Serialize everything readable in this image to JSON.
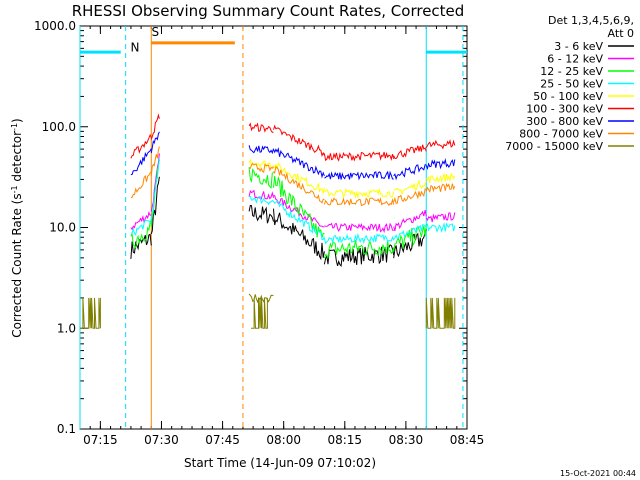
{
  "chart_data": {
    "type": "line",
    "title": "RHESSI Observing Summary Count Rates, Corrected",
    "xlabel": "Start Time (14-Jun-09 07:10:02)",
    "ylabel_parts": [
      "Corrected Count Rate (s",
      "-1",
      " detector",
      "-1",
      ")"
    ],
    "y_scale": "log",
    "ylim": [
      0.1,
      1000
    ],
    "y_ticks": [
      {
        "value": 0.1,
        "label": "0.1"
      },
      {
        "value": 1,
        "label": "1.0"
      },
      {
        "value": 10,
        "label": "10.0"
      },
      {
        "value": 100,
        "label": "100.0"
      },
      {
        "value": 1000,
        "label": "1000.0"
      }
    ],
    "xlim_min": [
      0,
      95
    ],
    "x_ticks": [
      {
        "value": 5,
        "label": "07:15"
      },
      {
        "value": 20,
        "label": "07:30"
      },
      {
        "value": 35,
        "label": "07:45"
      },
      {
        "value": 50,
        "label": "08:00"
      },
      {
        "value": 65,
        "label": "08:15"
      },
      {
        "value": 80,
        "label": "08:30"
      },
      {
        "value": 95,
        "label": "08:45"
      }
    ],
    "legend_header": [
      "Det 1,3,4,5,6,9,",
      "Att 0"
    ],
    "series": [
      {
        "name": "3 - 6 keV",
        "color": "#000000"
      },
      {
        "name": "6 - 12 keV",
        "color": "#ff00ff"
      },
      {
        "name": "12 - 25 keV",
        "color": "#00ff00"
      },
      {
        "name": "25 - 50 keV",
        "color": "#00ffff"
      },
      {
        "name": "50 - 100 keV",
        "color": "#ffff00"
      },
      {
        "name": "100 - 300 keV",
        "color": "#ff0000"
      },
      {
        "name": "300 - 800 keV",
        "color": "#0000ff"
      },
      {
        "name": "800 - 7000 keV",
        "color": "#ff8800"
      },
      {
        "name": "7000 - 15000 keV",
        "color": "#808000"
      }
    ],
    "segments": [
      {
        "t0": 12.5,
        "t1": 17.5,
        "levels": [
          6,
          10,
          7,
          8.5,
          null,
          50,
          33,
          20,
          null
        ],
        "end_levels": [
          8,
          14,
          10,
          12,
          null,
          80,
          60,
          35,
          null
        ]
      },
      {
        "t0": 17.5,
        "t1": 19.5,
        "levels": [
          8,
          14,
          10,
          12,
          null,
          80,
          60,
          35,
          null
        ],
        "end_levels": [
          30,
          50,
          45,
          45,
          null,
          130,
          90,
          60,
          null
        ]
      },
      {
        "t0": 41.5,
        "t1": 47.5,
        "levels": [
          14,
          22,
          35,
          20,
          45,
          100,
          60,
          40,
          2
        ],
        "end_levels": [
          13,
          20,
          30,
          18,
          42,
          95,
          58,
          38,
          2
        ]
      },
      {
        "t0": 47.5,
        "t1": 60,
        "levels": [
          13,
          20,
          30,
          18,
          42,
          95,
          58,
          38,
          2
        ],
        "end_levels": [
          5.5,
          10,
          7.5,
          8,
          23,
          55,
          34,
          18.5,
          null
        ]
      },
      {
        "t0": 60,
        "t1": 77,
        "levels": [
          5,
          10,
          6,
          7.5,
          22,
          50,
          32,
          18,
          null
        ],
        "end_levels": [
          5.5,
          10,
          6.5,
          8,
          22,
          52,
          33,
          18,
          null
        ]
      },
      {
        "t0": 77,
        "t1": 85,
        "levels": [
          5.5,
          10,
          6.5,
          8,
          22,
          52,
          33,
          18,
          null
        ],
        "end_levels": [
          8,
          14,
          9.5,
          10,
          28,
          62,
          40,
          23,
          null
        ]
      },
      {
        "t0": 85,
        "t1": 92,
        "levels": [
          null,
          12,
          null,
          10,
          30,
          65,
          42,
          24,
          null
        ],
        "end_levels": [
          null,
          13,
          null,
          10,
          32,
          68,
          44,
          25,
          null
        ]
      }
    ],
    "low_blocks": [
      {
        "t0": 0,
        "t1": 5,
        "series": "7000 - 15000 keV",
        "low": 1,
        "high": 2
      },
      {
        "t0": 42,
        "t1": 46,
        "series": "7000 - 15000 keV",
        "low": 1,
        "high": 2
      },
      {
        "t0": 85,
        "t1": 92,
        "series": "7000 - 15000 keV",
        "low": 1,
        "high": 2
      }
    ],
    "flag_bars": [
      {
        "label": "",
        "t0": 0,
        "t1": 10,
        "value": 550,
        "color": "#00e0ff"
      },
      {
        "label": "S",
        "t0": 17.5,
        "t1": 38,
        "value": 680,
        "color": "#ff8800"
      },
      {
        "label": "",
        "t0": 85,
        "t1": 95,
        "value": 550,
        "color": "#00e0ff"
      }
    ],
    "flag_labels": [
      {
        "label": "N",
        "t": 13.5,
        "value": 560,
        "color": "#00e0ff"
      },
      {
        "label": "S",
        "t": 18.5,
        "value": 800,
        "color": "#ff8800"
      }
    ],
    "vlines": [
      {
        "t": 0,
        "color": "#00e0ff",
        "style": "solid"
      },
      {
        "t": 11.2,
        "color": "#00e0ff",
        "style": "dashed"
      },
      {
        "t": 17.5,
        "color": "#ff8800",
        "style": "solid"
      },
      {
        "t": 40,
        "color": "#ff8800",
        "style": "dashed"
      },
      {
        "t": 85,
        "color": "#00e0ff",
        "style": "solid"
      },
      {
        "t": 94,
        "color": "#00e0ff",
        "style": "dashed"
      }
    ],
    "footer": "15-Oct-2021 00:44"
  }
}
